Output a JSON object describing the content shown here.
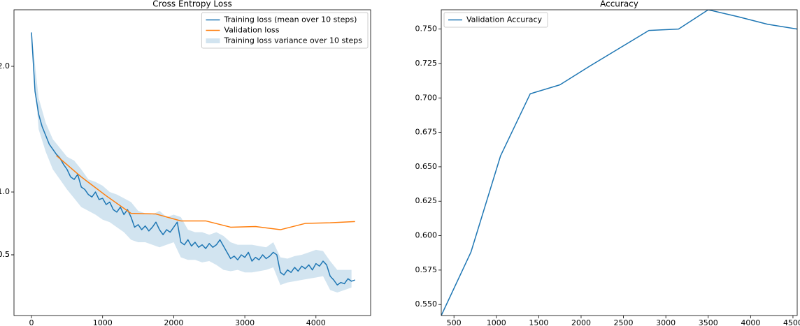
{
  "chart_data": [
    {
      "type": "line",
      "title": "Cross Entropy Loss",
      "xlim": [
        -246,
        4769
      ],
      "xticks": [
        0,
        1000,
        2000,
        3000,
        4000
      ],
      "ylim": [
        0.017,
        2.45
      ],
      "yticks": [
        0.5,
        {
          "value": 1.0,
          "label": "1.0"
        },
        0.5,
        {
          "value": 2.0,
          "label": "2.0"
        }
      ],
      "legend": "upper right",
      "series": [
        {
          "name": "Training loss (mean over 10 steps)",
          "color": "#1f77b4",
          "x": [
            0,
            50,
            100,
            150,
            200,
            250,
            300,
            350,
            400,
            450,
            500,
            550,
            600,
            650,
            700,
            750,
            800,
            850,
            900,
            950,
            1000,
            1050,
            1100,
            1150,
            1200,
            1250,
            1300,
            1350,
            1400,
            1450,
            1500,
            1550,
            1600,
            1650,
            1700,
            1750,
            1800,
            1850,
            1900,
            1950,
            2000,
            2050,
            2100,
            2150,
            2200,
            2250,
            2300,
            2350,
            2400,
            2450,
            2500,
            2550,
            2600,
            2650,
            2700,
            2750,
            2800,
            2850,
            2900,
            2950,
            3000,
            3050,
            3100,
            3150,
            3200,
            3250,
            3300,
            3350,
            3400,
            3450,
            3500,
            3550,
            3600,
            3650,
            3700,
            3750,
            3800,
            3850,
            3900,
            3950,
            4000,
            4050,
            4100,
            4150,
            4200,
            4250,
            4300,
            4350,
            4400,
            4450,
            4500,
            4550
          ],
          "values": [
            2.27,
            1.8,
            1.62,
            1.52,
            1.45,
            1.38,
            1.34,
            1.3,
            1.27,
            1.22,
            1.18,
            1.12,
            1.1,
            1.14,
            1.04,
            1.02,
            0.98,
            0.96,
            1.0,
            0.94,
            0.95,
            0.9,
            0.92,
            0.86,
            0.84,
            0.88,
            0.82,
            0.86,
            0.8,
            0.72,
            0.74,
            0.7,
            0.73,
            0.69,
            0.72,
            0.76,
            0.7,
            0.66,
            0.7,
            0.68,
            0.72,
            0.76,
            0.6,
            0.58,
            0.62,
            0.57,
            0.6,
            0.56,
            0.58,
            0.55,
            0.59,
            0.56,
            0.58,
            0.62,
            0.57,
            0.52,
            0.47,
            0.49,
            0.46,
            0.5,
            0.48,
            0.52,
            0.45,
            0.48,
            0.46,
            0.5,
            0.47,
            0.49,
            0.52,
            0.5,
            0.36,
            0.34,
            0.38,
            0.36,
            0.4,
            0.37,
            0.41,
            0.39,
            0.42,
            0.38,
            0.43,
            0.41,
            0.45,
            0.42,
            0.33,
            0.3,
            0.26,
            0.28,
            0.27,
            0.31,
            0.29,
            0.3
          ]
        },
        {
          "name": "Validation loss",
          "color": "#ff7f0e",
          "x": [
            350,
            700,
            1050,
            1400,
            1750,
            2100,
            2450,
            2800,
            3150,
            3500,
            3850,
            4200,
            4550
          ],
          "values": [
            1.29,
            1.12,
            0.97,
            0.83,
            0.825,
            0.77,
            0.77,
            0.72,
            0.725,
            0.7,
            0.75,
            0.755,
            0.765
          ]
        },
        {
          "name": "Training loss variance over 10 steps",
          "color": "#1f77b4",
          "type": "band",
          "opacity": 0.2,
          "x": [
            0,
            100,
            200,
            300,
            400,
            500,
            600,
            700,
            800,
            900,
            1000,
            1100,
            1200,
            1300,
            1400,
            1500,
            1600,
            1700,
            1800,
            1900,
            2000,
            2100,
            2200,
            2300,
            2400,
            2500,
            2600,
            2700,
            2800,
            2900,
            3000,
            3100,
            3200,
            3300,
            3400,
            3500,
            3600,
            3700,
            3800,
            3900,
            4000,
            4100,
            4200,
            4300,
            4400,
            4500
          ],
          "upper": [
            2.27,
            1.75,
            1.55,
            1.42,
            1.35,
            1.28,
            1.25,
            1.18,
            1.1,
            1.08,
            1.05,
            1.0,
            0.98,
            0.95,
            0.92,
            0.85,
            0.83,
            0.82,
            0.85,
            0.8,
            0.82,
            0.8,
            0.7,
            0.68,
            0.68,
            0.66,
            0.68,
            0.65,
            0.6,
            0.58,
            0.58,
            0.58,
            0.57,
            0.56,
            0.6,
            0.48,
            0.47,
            0.49,
            0.5,
            0.52,
            0.54,
            0.53,
            0.45,
            0.38,
            0.38,
            0.38
          ],
          "lower": [
            2.27,
            1.5,
            1.32,
            1.18,
            1.1,
            1.02,
            0.95,
            0.88,
            0.85,
            0.82,
            0.78,
            0.76,
            0.72,
            0.68,
            0.62,
            0.6,
            0.6,
            0.58,
            0.56,
            0.58,
            0.6,
            0.48,
            0.46,
            0.46,
            0.44,
            0.45,
            0.42,
            0.38,
            0.37,
            0.38,
            0.36,
            0.36,
            0.37,
            0.38,
            0.4,
            0.26,
            0.28,
            0.29,
            0.3,
            0.31,
            0.32,
            0.33,
            0.22,
            0.2,
            0.22,
            0.24
          ]
        }
      ]
    },
    {
      "type": "line",
      "title": "Accuracy",
      "xlim": [
        350,
        4550
      ],
      "xticks": [
        500,
        1000,
        1500,
        2000,
        2500,
        3000,
        3500,
        4000,
        4500
      ],
      "ylim": [
        0.542,
        0.764
      ],
      "yticks": [
        {
          "value": 0.55,
          "label": "0.550"
        },
        0.575,
        {
          "value": 0.6,
          "label": "0.600"
        },
        0.625,
        {
          "value": 0.65,
          "label": "0.650"
        },
        0.675,
        {
          "value": 0.7,
          "label": "0.700"
        },
        0.725,
        {
          "value": 0.75,
          "label": "0.750"
        }
      ],
      "legend": "upper left",
      "series": [
        {
          "name": "Validation Accuracy",
          "color": "#1f77b4",
          "x": [
            350,
            700,
            1050,
            1400,
            1750,
            2100,
            2450,
            2800,
            3150,
            3500,
            3850,
            4200,
            4550
          ],
          "values": [
            0.542,
            0.588,
            0.658,
            0.703,
            0.7095,
            0.723,
            0.736,
            0.749,
            0.75,
            0.764,
            0.759,
            0.7535,
            0.75
          ]
        }
      ]
    }
  ]
}
